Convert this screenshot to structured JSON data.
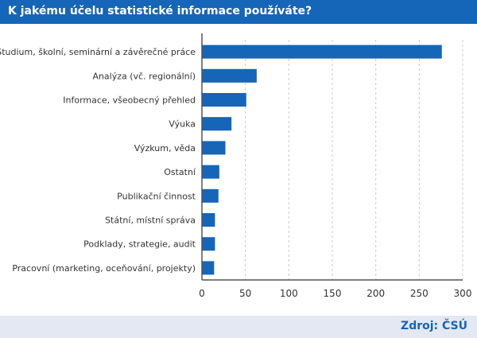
{
  "title": "K jakému účelu statistické informace používáte?",
  "source": "Zdroj: ČSÚ",
  "chart_data": {
    "type": "bar",
    "orientation": "horizontal",
    "title": "K jakému účelu statistické informace používáte?",
    "categories": [
      "Studium, školní, seminární a závěrečné práce",
      "Analýza (vč. regionální)",
      "Informace, všeobecný přehled",
      "Výuka",
      "Výzkum, věda",
      "Ostatní",
      "Publikační činnost",
      "Státní, místní správa",
      "Podklady, strategie, audit",
      "Pracovní (marketing, oceňování, projekty)"
    ],
    "values": [
      276,
      63,
      51,
      34,
      27,
      20,
      19,
      15,
      15,
      14
    ],
    "xlim": [
      0,
      300
    ],
    "xticks": [
      "0",
      "50",
      "100",
      "150",
      "200",
      "250",
      "300"
    ],
    "grid": "vertical dashed",
    "bar_color": "#1565b8"
  }
}
